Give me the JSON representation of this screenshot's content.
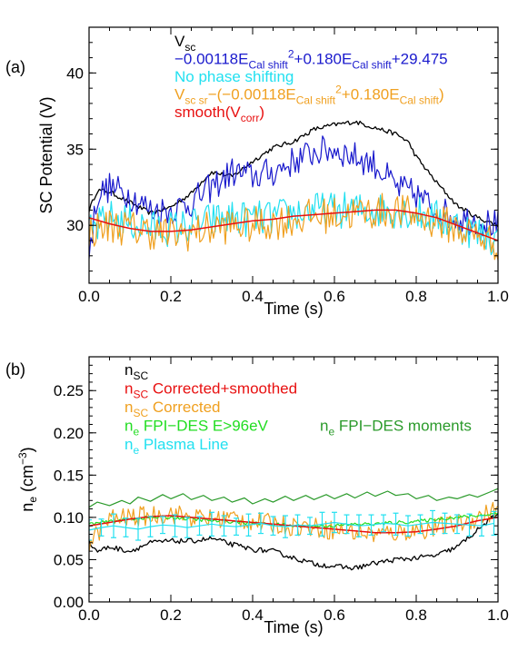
{
  "colors": {
    "black": "#000000",
    "blue": "#1a1acd",
    "cyan": "#22e0f0",
    "orange": "#f0a020",
    "red": "#e81010",
    "green_light": "#22dd22",
    "green_dark": "#2a9a2a"
  },
  "chart_data": [
    {
      "panel_label": "(a)",
      "type": "line",
      "xlabel": "Time (s)",
      "ylabel": "SC Potential (V)",
      "xlim": [
        0.0,
        1.0
      ],
      "ylim": [
        26.2,
        43.0
      ],
      "x_ticks": [
        0.0,
        0.2,
        0.4,
        0.6,
        0.8,
        1.0
      ],
      "x_tick_labels": [
        "0.0",
        "0.2",
        "0.4",
        "0.6",
        "0.8",
        "1.0"
      ],
      "y_ticks": [
        30,
        35,
        40
      ],
      "y_tick_labels": [
        "30",
        "35",
        "40"
      ],
      "legend": [
        {
          "color": "#000000",
          "text": "V",
          "sub": "sc"
        },
        {
          "color": "#1a1acd",
          "text": "−0.00118E",
          "sub": "Cal shift",
          "sup": "2",
          "text2": "+0.180E",
          "sub2": "Cal shift",
          "text3": "+29.475"
        },
        {
          "color": "#22e0f0",
          "text": "No phase shifting"
        },
        {
          "color": "#f0a020",
          "text": "V",
          "sub": "sc sr",
          "text2": "−(−0.00118E",
          "sub2": "Cal shift",
          "sup2": "2",
          "text3": "+0.180E",
          "sub3": "Cal shift",
          "text4": ")"
        },
        {
          "color": "#e81010",
          "text": "smooth(V",
          "sub": "corr",
          "text2": ")"
        }
      ],
      "series": [
        {
          "color": "#000000",
          "width": 1.3,
          "noise": 0.15,
          "x": [
            0,
            0.02,
            0.05,
            0.1,
            0.15,
            0.2,
            0.25,
            0.28,
            0.3,
            0.35,
            0.4,
            0.45,
            0.5,
            0.55,
            0.6,
            0.65,
            0.7,
            0.75,
            0.78,
            0.8,
            0.85,
            0.9,
            0.95,
            1.0
          ],
          "values": [
            31.0,
            32.3,
            32.2,
            31.5,
            30.8,
            31.2,
            32.1,
            33.0,
            33.5,
            33.2,
            34.2,
            35.1,
            35.5,
            36.3,
            36.6,
            36.8,
            36.4,
            36.0,
            35.5,
            34.5,
            32.8,
            31.3,
            30.5,
            30.0
          ]
        },
        {
          "color": "#1a1acd",
          "width": 1.2,
          "noise": 1.0,
          "x": [
            0,
            0.02,
            0.05,
            0.1,
            0.15,
            0.2,
            0.25,
            0.3,
            0.35,
            0.4,
            0.45,
            0.5,
            0.55,
            0.6,
            0.65,
            0.7,
            0.75,
            0.8,
            0.85,
            0.9,
            0.95,
            1.0
          ],
          "values": [
            28.0,
            32.0,
            32.5,
            32.0,
            31.0,
            31.0,
            31.5,
            32.5,
            33.5,
            33.2,
            33.5,
            34.2,
            34.8,
            35.0,
            34.5,
            34.0,
            32.5,
            32.0,
            31.0,
            30.5,
            30.3,
            30.0
          ]
        },
        {
          "color": "#22e0f0",
          "width": 1.2,
          "noise": 1.2,
          "x": [
            0,
            0.05,
            0.1,
            0.15,
            0.2,
            0.25,
            0.3,
            0.35,
            0.4,
            0.45,
            0.5,
            0.55,
            0.6,
            0.65,
            0.7,
            0.75,
            0.8,
            0.85,
            0.9,
            0.95,
            1.0
          ],
          "values": [
            29.5,
            30.5,
            30.2,
            29.8,
            29.8,
            30.0,
            30.3,
            30.5,
            30.4,
            30.5,
            30.8,
            31.0,
            31.0,
            31.0,
            31.0,
            31.0,
            30.8,
            30.5,
            30.0,
            29.5,
            29.0
          ]
        },
        {
          "color": "#f0a020",
          "width": 1.2,
          "noise": 1.2,
          "x": [
            0,
            0.05,
            0.1,
            0.15,
            0.2,
            0.25,
            0.3,
            0.35,
            0.4,
            0.45,
            0.5,
            0.55,
            0.6,
            0.65,
            0.7,
            0.75,
            0.8,
            0.85,
            0.9,
            0.95,
            1.0
          ],
          "values": [
            29.6,
            30.0,
            29.8,
            29.6,
            29.4,
            29.5,
            29.8,
            30.0,
            30.0,
            30.2,
            30.4,
            30.6,
            30.7,
            30.8,
            30.9,
            31.0,
            30.6,
            30.3,
            29.8,
            29.3,
            28.8
          ]
        },
        {
          "color": "#e81010",
          "width": 1.5,
          "noise": 0,
          "x": [
            0,
            0.05,
            0.1,
            0.15,
            0.2,
            0.25,
            0.3,
            0.35,
            0.4,
            0.45,
            0.5,
            0.55,
            0.6,
            0.65,
            0.7,
            0.75,
            0.8,
            0.85,
            0.9,
            0.95,
            1.0
          ],
          "values": [
            30.5,
            30.1,
            29.8,
            29.6,
            29.6,
            29.7,
            29.9,
            30.1,
            30.3,
            30.4,
            30.6,
            30.7,
            30.8,
            30.9,
            31.0,
            31.0,
            30.8,
            30.5,
            30.0,
            29.5,
            29.0
          ]
        }
      ]
    },
    {
      "panel_label": "(b)",
      "type": "line",
      "xlabel": "Time (s)",
      "ylabel": "n",
      "ylabel_sub": "e",
      "ylabel_units": " (cm",
      "ylabel_sup": "−3",
      "ylabel_end": ")",
      "xlim": [
        0.0,
        1.0
      ],
      "ylim": [
        0.0,
        0.29
      ],
      "x_ticks": [
        0.0,
        0.2,
        0.4,
        0.6,
        0.8,
        1.0
      ],
      "x_tick_labels": [
        "0.0",
        "0.2",
        "0.4",
        "0.6",
        "0.8",
        "1.0"
      ],
      "y_ticks": [
        0.0,
        0.05,
        0.1,
        0.15,
        0.2,
        0.25
      ],
      "y_tick_labels": [
        "0.00",
        "0.05",
        "0.10",
        "0.15",
        "0.20",
        "0.25"
      ],
      "legend": [
        {
          "color": "#000000",
          "text": "n",
          "sub": "SC"
        },
        {
          "color": "#e81010",
          "text": "n",
          "sub": "SC",
          "text2": " Corrected+smoothed"
        },
        {
          "color": "#f0a020",
          "text": "n",
          "sub": "SC",
          "text2": " Corrected"
        },
        {
          "color": "#22dd22",
          "text": "n",
          "sub": "e",
          "text2": " FPI−DES E>96eV"
        },
        {
          "color": "#2a9a2a",
          "text": "n",
          "sub": "e",
          "text2": " FPI−DES moments"
        },
        {
          "color": "#22e0f0",
          "text": "n",
          "sub": "e",
          "text2": " Plasma Line"
        }
      ],
      "series": [
        {
          "color": "#000000",
          "width": 1.3,
          "noise": 0.003,
          "x": [
            0,
            0.02,
            0.05,
            0.1,
            0.15,
            0.2,
            0.25,
            0.3,
            0.35,
            0.4,
            0.45,
            0.5,
            0.55,
            0.6,
            0.65,
            0.7,
            0.75,
            0.8,
            0.85,
            0.9,
            0.95,
            1.0
          ],
          "values": [
            0.07,
            0.06,
            0.065,
            0.06,
            0.07,
            0.072,
            0.072,
            0.075,
            0.068,
            0.062,
            0.06,
            0.052,
            0.045,
            0.042,
            0.04,
            0.046,
            0.05,
            0.052,
            0.055,
            0.065,
            0.085,
            0.105
          ]
        },
        {
          "color": "#2a9a2a",
          "width": 1.2,
          "noise": 0,
          "x": [
            0,
            0.02,
            0.05,
            0.08,
            0.1,
            0.12,
            0.15,
            0.18,
            0.2,
            0.23,
            0.25,
            0.28,
            0.3,
            0.33,
            0.35,
            0.38,
            0.4,
            0.43,
            0.45,
            0.48,
            0.5,
            0.53,
            0.55,
            0.58,
            0.6,
            0.63,
            0.65,
            0.68,
            0.7,
            0.73,
            0.75,
            0.78,
            0.8,
            0.83,
            0.85,
            0.88,
            0.9,
            0.93,
            0.95,
            0.98,
            1.0
          ],
          "values": [
            0.112,
            0.118,
            0.114,
            0.12,
            0.116,
            0.124,
            0.119,
            0.127,
            0.122,
            0.128,
            0.121,
            0.126,
            0.12,
            0.124,
            0.118,
            0.123,
            0.116,
            0.122,
            0.118,
            0.125,
            0.12,
            0.126,
            0.121,
            0.127,
            0.122,
            0.128,
            0.123,
            0.13,
            0.125,
            0.131,
            0.126,
            0.128,
            0.122,
            0.126,
            0.12,
            0.124,
            0.122,
            0.127,
            0.124,
            0.13,
            0.134
          ]
        },
        {
          "color": "#f0a020",
          "width": 1.2,
          "noise": 0.012,
          "x": [
            0,
            0.05,
            0.1,
            0.15,
            0.2,
            0.25,
            0.3,
            0.35,
            0.4,
            0.45,
            0.5,
            0.55,
            0.6,
            0.65,
            0.7,
            0.75,
            0.8,
            0.85,
            0.9,
            0.95,
            1.0
          ],
          "values": [
            0.07,
            0.098,
            0.1,
            0.102,
            0.105,
            0.1,
            0.098,
            0.1,
            0.095,
            0.092,
            0.09,
            0.088,
            0.085,
            0.083,
            0.08,
            0.082,
            0.085,
            0.088,
            0.092,
            0.1,
            0.11
          ]
        },
        {
          "color": "#22dd22",
          "width": 1.2,
          "noise": 0.002,
          "x": [
            0,
            0.05,
            0.1,
            0.15,
            0.2,
            0.25,
            0.3,
            0.35,
            0.4,
            0.45,
            0.5,
            0.55,
            0.6,
            0.65,
            0.7,
            0.75,
            0.8,
            0.85,
            0.9,
            0.95,
            1.0
          ],
          "values": [
            0.092,
            0.095,
            0.098,
            0.1,
            0.1,
            0.098,
            0.096,
            0.095,
            0.093,
            0.092,
            0.09,
            0.09,
            0.09,
            0.092,
            0.092,
            0.094,
            0.095,
            0.098,
            0.1,
            0.102,
            0.105
          ]
        },
        {
          "color": "#e81010",
          "width": 1.5,
          "noise": 0,
          "x": [
            0,
            0.05,
            0.1,
            0.15,
            0.2,
            0.25,
            0.3,
            0.35,
            0.4,
            0.45,
            0.5,
            0.55,
            0.6,
            0.65,
            0.7,
            0.75,
            0.8,
            0.85,
            0.9,
            0.95,
            1.0
          ],
          "values": [
            0.09,
            0.094,
            0.098,
            0.101,
            0.102,
            0.1,
            0.098,
            0.096,
            0.094,
            0.092,
            0.09,
            0.088,
            0.086,
            0.084,
            0.082,
            0.082,
            0.083,
            0.086,
            0.09,
            0.096,
            0.1
          ]
        }
      ],
      "errorbar_series": {
        "color": "#22e0f0",
        "x": [
          0.0,
          0.03,
          0.06,
          0.09,
          0.12,
          0.15,
          0.18,
          0.21,
          0.24,
          0.27,
          0.3,
          0.33,
          0.36,
          0.39,
          0.42,
          0.45,
          0.48,
          0.51,
          0.54,
          0.57,
          0.6,
          0.63,
          0.66,
          0.69,
          0.72,
          0.75,
          0.78,
          0.81,
          0.84,
          0.87,
          0.9,
          0.93,
          0.96,
          0.99
        ],
        "values": [
          0.085,
          0.088,
          0.09,
          0.088,
          0.086,
          0.089,
          0.091,
          0.09,
          0.088,
          0.09,
          0.092,
          0.09,
          0.089,
          0.091,
          0.093,
          0.09,
          0.089,
          0.091,
          0.09,
          0.092,
          0.094,
          0.092,
          0.09,
          0.091,
          0.093,
          0.092,
          0.09,
          0.092,
          0.094,
          0.093,
          0.092,
          0.091,
          0.09,
          0.093
        ],
        "errors": [
          0.012,
          0.01,
          0.014,
          0.011,
          0.013,
          0.012,
          0.01,
          0.013,
          0.012,
          0.011,
          0.014,
          0.012,
          0.01,
          0.013,
          0.012,
          0.011,
          0.013,
          0.012,
          0.01,
          0.014,
          0.012,
          0.011,
          0.013,
          0.012,
          0.01,
          0.013,
          0.012,
          0.011,
          0.014,
          0.012,
          0.011,
          0.013,
          0.012,
          0.014
        ]
      }
    }
  ]
}
